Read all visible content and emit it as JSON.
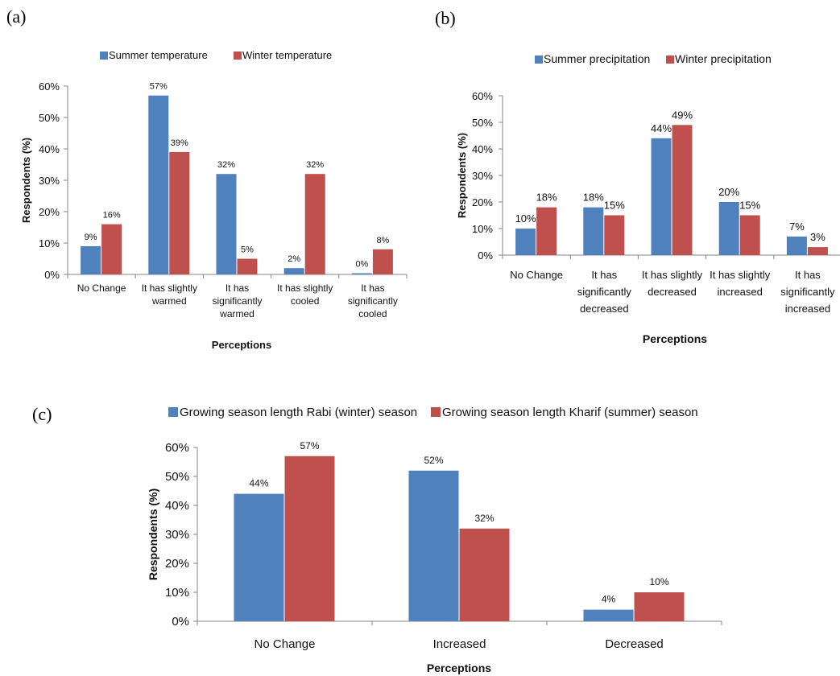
{
  "panels": {
    "a": "(a)",
    "b": "(b)",
    "c": "(c)"
  },
  "chart_data": [
    {
      "id": "a",
      "type": "bar",
      "xlabel": "Perceptions",
      "ylabel": "Respondents (%)",
      "ylim": [
        0,
        60
      ],
      "yticks": [
        "0%",
        "10%",
        "20%",
        "30%",
        "40%",
        "50%",
        "60%"
      ],
      "legend_position": "top",
      "categories": [
        [
          "No Change"
        ],
        [
          "It has slightly",
          "warmed"
        ],
        [
          "It has",
          "significantly",
          "warmed"
        ],
        [
          "It has slightly",
          "cooled"
        ],
        [
          "It has",
          "significantly",
          "cooled"
        ]
      ],
      "series": [
        {
          "name": "Summer temperature",
          "color": "#4f81bd",
          "values": [
            9,
            57,
            32,
            2,
            0
          ],
          "labels": [
            "9%",
            "57%",
            "32%",
            "2%",
            "0%"
          ]
        },
        {
          "name": "Winter temperature",
          "color": "#c0504d",
          "values": [
            16,
            39,
            5,
            32,
            8
          ],
          "labels": [
            "16%",
            "39%",
            "5%",
            "32%",
            "8%"
          ]
        }
      ]
    },
    {
      "id": "b",
      "type": "bar",
      "xlabel": "Perceptions",
      "ylabel": "Respondents (%)",
      "ylim": [
        0,
        60
      ],
      "yticks": [
        "0%",
        "10%",
        "20%",
        "30%",
        "40%",
        "50%",
        "60%"
      ],
      "legend_position": "top",
      "categories": [
        [
          "No Change"
        ],
        [
          "It has",
          "significantly",
          "decreased"
        ],
        [
          "It has slightly",
          "decreased"
        ],
        [
          "It has slightly",
          "increased"
        ],
        [
          "It has",
          "significantly",
          "increased"
        ]
      ],
      "series": [
        {
          "name": "Summer precipitation",
          "color": "#4f81bd",
          "values": [
            10,
            18,
            44,
            20,
            7
          ],
          "labels": [
            "10%",
            "18%",
            "44%",
            "20%",
            "7%"
          ]
        },
        {
          "name": "Winter precipitation",
          "color": "#c0504d",
          "values": [
            18,
            15,
            49,
            15,
            3
          ],
          "labels": [
            "18%",
            "15%",
            "49%",
            "15%",
            "3%"
          ]
        }
      ]
    },
    {
      "id": "c",
      "type": "bar",
      "xlabel": "Perceptions",
      "ylabel": "Respondents (%)",
      "ylim": [
        0,
        60
      ],
      "yticks": [
        "0%",
        "10%",
        "20%",
        "30%",
        "40%",
        "50%",
        "60%"
      ],
      "legend_position": "top",
      "categories": [
        [
          "No Change"
        ],
        [
          "Increased"
        ],
        [
          "Decreased"
        ]
      ],
      "series": [
        {
          "name": "Growing season length Rabi (winter) season",
          "color": "#4f81bd",
          "values": [
            44,
            52,
            4
          ],
          "labels": [
            "44%",
            "52%",
            "4%"
          ]
        },
        {
          "name": "Growing season length Kharif (summer) season",
          "color": "#c0504d",
          "values": [
            57,
            32,
            10
          ],
          "labels": [
            "57%",
            "32%",
            "10%"
          ]
        }
      ]
    }
  ]
}
